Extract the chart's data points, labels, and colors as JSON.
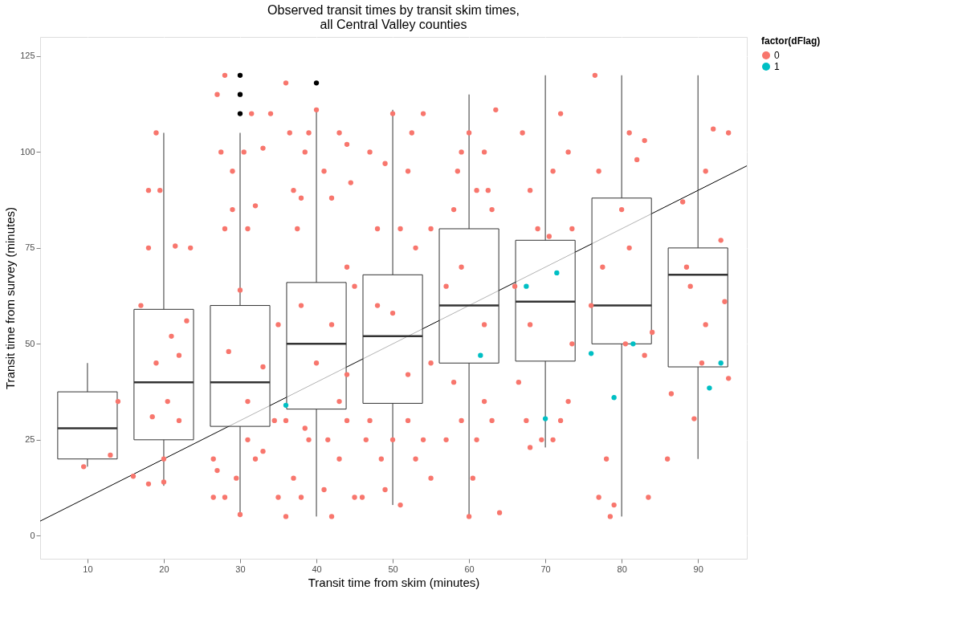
{
  "chart_data": {
    "type": "box",
    "title": "Observed transit times by transit skim times,\nall Central Valley counties",
    "xlabel": "Transit time from skim (minutes)",
    "ylabel": "Transit time from survey (minutes)",
    "legend_title": "factor(dFlag)",
    "legend": "right",
    "grid": true,
    "line_style": "solid",
    "xlim": [
      3.8,
      96.4
    ],
    "ylim": [
      -6,
      130
    ],
    "xticks": [
      10,
      20,
      30,
      40,
      50,
      60,
      70,
      80,
      90
    ],
    "yticks": [
      0,
      25,
      50,
      75,
      100,
      125
    ],
    "series": [
      {
        "name": "0",
        "type": "scatter",
        "marker": "circle",
        "color": "#f8766d",
        "x": [
          9.5,
          13,
          14,
          16,
          17,
          18,
          19,
          19.5,
          18,
          20,
          20,
          21.5,
          22,
          23.5,
          23,
          19,
          18.5,
          22,
          20.5,
          21,
          18,
          26.5,
          27,
          27.5,
          28,
          28,
          29,
          29,
          30,
          30.5,
          31,
          31.5,
          32,
          33,
          34,
          35,
          26.5,
          27,
          28,
          29.5,
          30,
          31,
          32,
          33,
          34.5,
          33,
          35,
          28.5,
          31,
          36,
          36.5,
          37,
          37.5,
          38,
          38.5,
          39,
          40,
          41,
          42,
          43,
          44,
          44.5,
          36,
          37,
          38,
          39,
          41,
          42,
          43,
          44,
          45,
          44,
          45,
          36,
          38.5,
          41.5,
          43,
          44,
          38,
          42,
          40,
          46,
          47,
          48,
          49,
          50,
          51,
          52,
          52.5,
          53,
          54,
          55,
          46.5,
          47,
          48.5,
          49,
          50,
          51,
          52,
          53,
          54,
          55,
          55,
          48,
          52,
          50,
          57,
          58,
          58.5,
          59,
          60,
          61,
          62,
          62.5,
          63.5,
          63,
          57,
          58,
          59,
          60,
          61,
          62,
          63,
          64,
          60.5,
          59,
          62,
          66,
          67,
          68,
          69,
          70.5,
          71,
          72,
          73,
          73.5,
          66.5,
          67.5,
          68,
          69.5,
          71,
          72,
          73,
          73.5,
          68,
          76,
          76.5,
          77,
          77,
          78,
          78.5,
          79,
          80,
          81,
          82,
          83,
          83.5,
          84,
          83,
          77.5,
          81,
          80.5,
          86,
          86.5,
          88,
          88.5,
          89.5,
          90.5,
          91,
          92,
          93,
          93.5,
          94,
          94,
          91,
          89
        ],
        "values": [
          18,
          21,
          35,
          15.5,
          60,
          90,
          105,
          90,
          75,
          14,
          20,
          75.5,
          47,
          75,
          56,
          45,
          31,
          30,
          35,
          52,
          13.5,
          10,
          115,
          100,
          120,
          80,
          85,
          95,
          64,
          100,
          80,
          110,
          86,
          101,
          110,
          10,
          20,
          17,
          10,
          15,
          5.5,
          25,
          20,
          22,
          30,
          44,
          55,
          48,
          35,
          118,
          105,
          90,
          80,
          88,
          100,
          105,
          111,
          95,
          88,
          105,
          102,
          92,
          5,
          15,
          10,
          25,
          12,
          5,
          20,
          30,
          10,
          70,
          65,
          30,
          28,
          25,
          35,
          42,
          60,
          55,
          45,
          10,
          100,
          80,
          97,
          110,
          80,
          95,
          105,
          75,
          110,
          80,
          25,
          30,
          20,
          12,
          25,
          8,
          30,
          20,
          25,
          15,
          45,
          60,
          42,
          58,
          65,
          85,
          95,
          100,
          105,
          90,
          100,
          90,
          111,
          85,
          25,
          40,
          30,
          5,
          25,
          35,
          30,
          6,
          15,
          70,
          55,
          65,
          105,
          90,
          80,
          78,
          95,
          110,
          100,
          80,
          40,
          30,
          23,
          25,
          25,
          30,
          35,
          50,
          55,
          60,
          120,
          95,
          10,
          20,
          5,
          8,
          85,
          105,
          98,
          103,
          10,
          53,
          47,
          70,
          75,
          50,
          20,
          37,
          87,
          70,
          30.5,
          45,
          95,
          106,
          77,
          61,
          105,
          41,
          55,
          65
        ]
      },
      {
        "name": "1",
        "type": "scatter",
        "marker": "circle",
        "color": "#00bfc4",
        "x": [
          36,
          61.5,
          67.5,
          70,
          71.5,
          76,
          79,
          81.5,
          91.5,
          93
        ],
        "values": [
          34,
          47,
          65,
          30.5,
          68.5,
          47.5,
          36,
          50,
          38.5,
          45
        ]
      },
      {
        "type": "line",
        "color": "#000000",
        "x": [
          3.8,
          96.4
        ],
        "values": [
          3.8,
          96.4
        ]
      },
      {
        "color": "#333333",
        "x": [
          10,
          20,
          30,
          40,
          50,
          60,
          70,
          80,
          90
        ],
        "boxes": [
          {
            "low": 18,
            "q1": 20,
            "median": 28,
            "q3": 37.5,
            "high": 45
          },
          {
            "low": 13,
            "q1": 25,
            "median": 40,
            "q3": 59,
            "high": 105
          },
          {
            "low": 5,
            "q1": 28.5,
            "median": 40,
            "q3": 60,
            "high": 105,
            "outliers": [
              110,
              115,
              120
            ]
          },
          {
            "low": 5,
            "q1": 33,
            "median": 50,
            "q3": 66,
            "high": 111,
            "outliers": [
              118
            ]
          },
          {
            "low": 8,
            "q1": 34.5,
            "median": 52,
            "q3": 68,
            "high": 111
          },
          {
            "low": 5,
            "q1": 45,
            "median": 60,
            "q3": 80,
            "high": 115
          },
          {
            "low": 23,
            "q1": 45.5,
            "median": 61,
            "q3": 77,
            "high": 120
          },
          {
            "low": 5,
            "q1": 50,
            "median": 60,
            "q3": 88,
            "high": 120
          },
          {
            "low": 20,
            "q1": 44,
            "median": 68,
            "q3": 75,
            "high": 120
          }
        ]
      }
    ]
  }
}
